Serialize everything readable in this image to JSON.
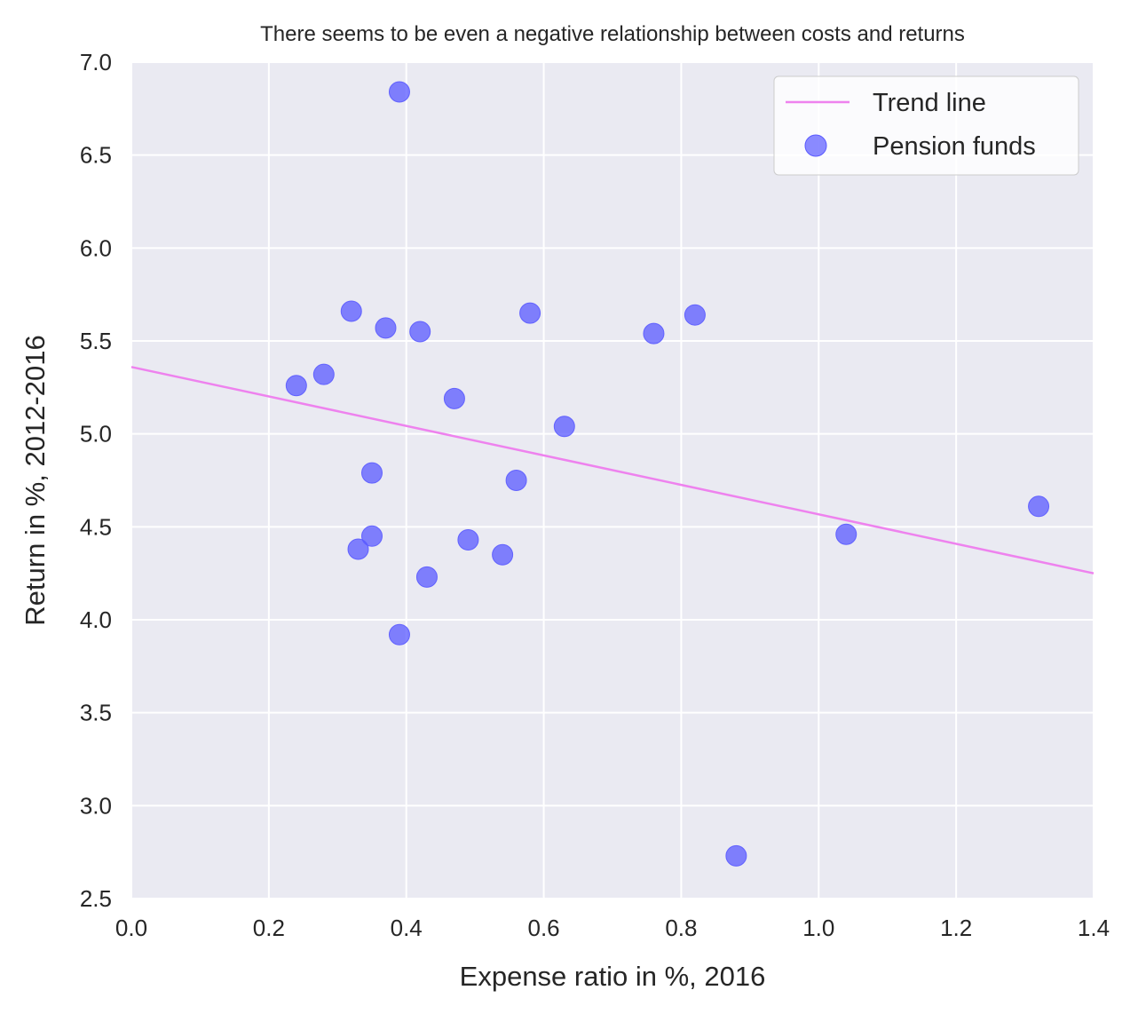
{
  "chart_data": {
    "type": "scatter",
    "title": "There seems to be even a negative relationship between costs and returns",
    "xlabel": "Expense ratio in %, 2016",
    "ylabel": "Return in %, 2012-2016",
    "xlim": [
      0.0,
      1.4
    ],
    "ylim": [
      2.5,
      7.0
    ],
    "x_ticks": [
      "0.0",
      "0.2",
      "0.4",
      "0.6",
      "0.8",
      "1.0",
      "1.2",
      "1.4"
    ],
    "y_ticks": [
      "2.5",
      "3.0",
      "3.5",
      "4.0",
      "4.5",
      "5.0",
      "5.5",
      "6.0",
      "6.5",
      "7.0"
    ],
    "grid": true,
    "legend_position": "top-right",
    "series": [
      {
        "name": "Pension funds",
        "kind": "scatter",
        "color": "#5a5aff",
        "points": [
          {
            "x": 0.39,
            "y": 6.84
          },
          {
            "x": 0.32,
            "y": 5.66
          },
          {
            "x": 0.37,
            "y": 5.57
          },
          {
            "x": 0.42,
            "y": 5.55
          },
          {
            "x": 0.58,
            "y": 5.65
          },
          {
            "x": 0.76,
            "y": 5.54
          },
          {
            "x": 0.82,
            "y": 5.64
          },
          {
            "x": 0.24,
            "y": 5.26
          },
          {
            "x": 0.28,
            "y": 5.32
          },
          {
            "x": 0.47,
            "y": 5.19
          },
          {
            "x": 0.63,
            "y": 5.04
          },
          {
            "x": 0.35,
            "y": 4.79
          },
          {
            "x": 0.56,
            "y": 4.75
          },
          {
            "x": 0.35,
            "y": 4.45
          },
          {
            "x": 0.33,
            "y": 4.38
          },
          {
            "x": 0.49,
            "y": 4.43
          },
          {
            "x": 0.54,
            "y": 4.35
          },
          {
            "x": 0.43,
            "y": 4.23
          },
          {
            "x": 0.39,
            "y": 3.92
          },
          {
            "x": 1.04,
            "y": 4.46
          },
          {
            "x": 1.32,
            "y": 4.61
          },
          {
            "x": 0.88,
            "y": 2.73
          }
        ]
      },
      {
        "name": "Trend line",
        "kind": "line",
        "color": "#ee82ee",
        "points": [
          {
            "x": 0.0,
            "y": 5.36
          },
          {
            "x": 1.4,
            "y": 4.25
          }
        ]
      }
    ]
  },
  "colors": {
    "plot_background": "#eaeaf2",
    "grid": "#ffffff",
    "text": "#262626",
    "scatter_fill": "#5a5aff",
    "trend_line": "#ee82ee"
  }
}
